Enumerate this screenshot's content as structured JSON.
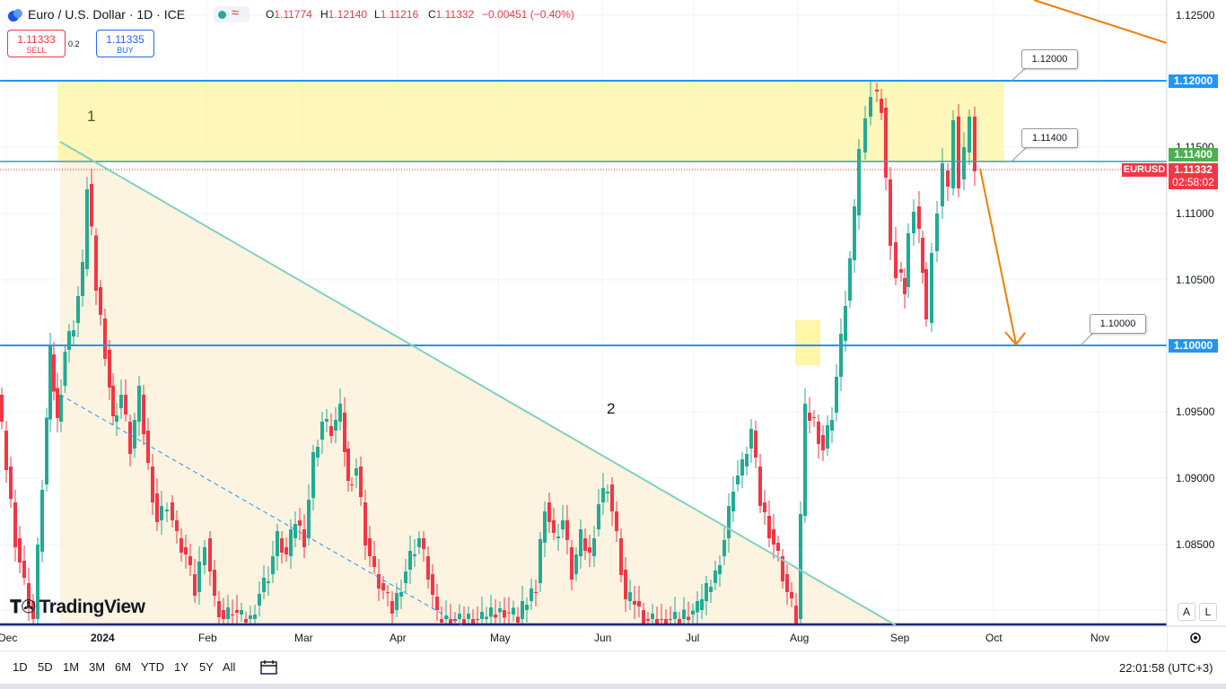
{
  "header": {
    "title": "Euro / U.S. Dollar · 1D · ICE",
    "status_wave": "≈",
    "open_label": "O",
    "open": "1.11774",
    "high_label": "H",
    "high": "1.12140",
    "low_label": "L",
    "low": "1.11216",
    "close_label": "C",
    "close": "1.11332",
    "change": "−0.00451 (−0.40%)"
  },
  "trade": {
    "sell_price": "1.11333",
    "sell_label": "SELL",
    "spread": "0.2",
    "buy_price": "1.11335",
    "buy_label": "BUY"
  },
  "price_axis": {
    "ticks": [
      "1.12500",
      "1.11500",
      "1.11000",
      "1.10500",
      "1.09500",
      "1.09000",
      "1.08500"
    ],
    "level_tags": {
      "l1": "1.12000",
      "l2": "1.11400",
      "l3": "1.10000"
    },
    "current_price": "1.11332",
    "countdown": "02:58:02",
    "symbol": "EURUSD",
    "auto_btn": "A",
    "log_btn": "L"
  },
  "callouts": {
    "c1": "1.12000",
    "c2": "1.11400",
    "c3": "1.10000"
  },
  "notes": {
    "n1": "1",
    "n2": "2"
  },
  "time_axis": [
    "Dec",
    "2024",
    "Feb",
    "Mar",
    "Apr",
    "May",
    "Jun",
    "Jul",
    "Aug",
    "Sep",
    "Oct",
    "Nov"
  ],
  "brand": "TradingView",
  "bottom": {
    "ranges": [
      "1D",
      "5D",
      "1M",
      "3M",
      "6M",
      "YTD",
      "1Y",
      "5Y",
      "All"
    ],
    "clock": "22:01:58 (UTC+3)"
  },
  "colors": {
    "up": "#22ab94",
    "down": "#f23645",
    "zone": "#fff59d",
    "level": "#2196f3",
    "arrow": "#f57c00",
    "triangle": "#fdf3e1",
    "trend": "#7ed3c0"
  },
  "chart_data": {
    "type": "candlestick",
    "symbol": "EURUSD",
    "timeframe": "1D",
    "last": {
      "open": 1.11774,
      "high": 1.1214,
      "low": 1.11216,
      "close": 1.11332
    },
    "levels": [
      1.12,
      1.114,
      1.1
    ]
  }
}
